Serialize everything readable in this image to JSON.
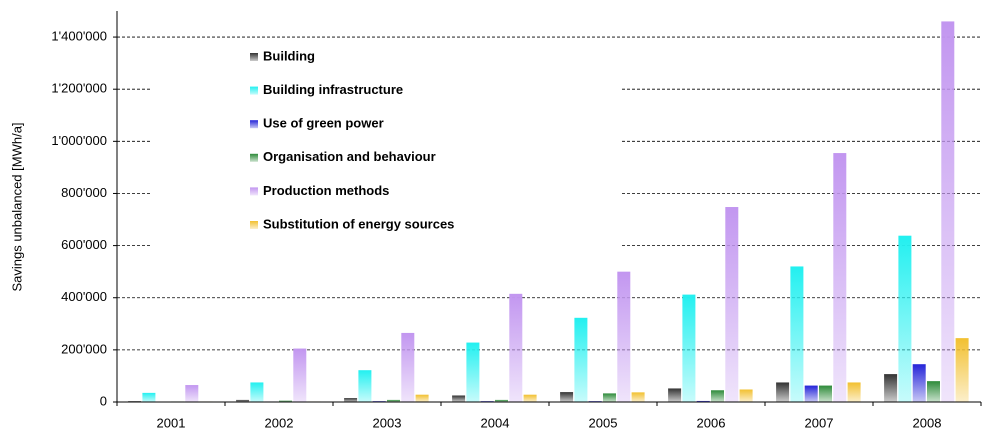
{
  "chart_data": {
    "type": "bar",
    "y_label": "Savings unbalanced [MWh/a]",
    "categories": [
      "2001",
      "2002",
      "2003",
      "2004",
      "2005",
      "2006",
      "2007",
      "2008"
    ],
    "series": [
      {
        "name": "Building",
        "color": "#333333",
        "values": [
          3000,
          8000,
          15000,
          25000,
          38000,
          52000,
          75000,
          107000
        ]
      },
      {
        "name": "Building infrastructure",
        "color": "#22f0f0",
        "values": [
          35000,
          75000,
          122000,
          228000,
          323000,
          412000,
          520000,
          638000
        ]
      },
      {
        "name": "Use of green power",
        "color": "#2424d8",
        "values": [
          1000,
          2000,
          3000,
          3000,
          3000,
          4000,
          63000,
          145000
        ]
      },
      {
        "name": "Organisation and behaviour",
        "color": "#2e8b3a",
        "values": [
          2000,
          5000,
          8000,
          8000,
          33000,
          45000,
          63000,
          80000
        ]
      },
      {
        "name": "Production methods",
        "color": "#c296f0",
        "values": [
          65000,
          205000,
          265000,
          415000,
          500000,
          748000,
          955000,
          1460000
        ]
      },
      {
        "name": "Substitution of energy sources",
        "color": "#f2c030",
        "values": [
          2000,
          2000,
          28000,
          28000,
          37000,
          48000,
          75000,
          245000
        ]
      }
    ],
    "ylim": [
      0,
      1500000
    ],
    "yticks": [
      0,
      {
        "value": 200000,
        "label": "200'000"
      },
      {
        "value": 400000,
        "label": "400'000"
      },
      {
        "value": 600000,
        "label": "600'000"
      },
      {
        "value": 800000,
        "label": "800'000"
      },
      {
        "value": 1000000,
        "label": "1'000'000"
      },
      {
        "value": 1200000,
        "label": "1'200'000"
      },
      {
        "value": 1400000,
        "label": "1'400'000"
      }
    ],
    "grid": true,
    "legend": "upper left"
  }
}
